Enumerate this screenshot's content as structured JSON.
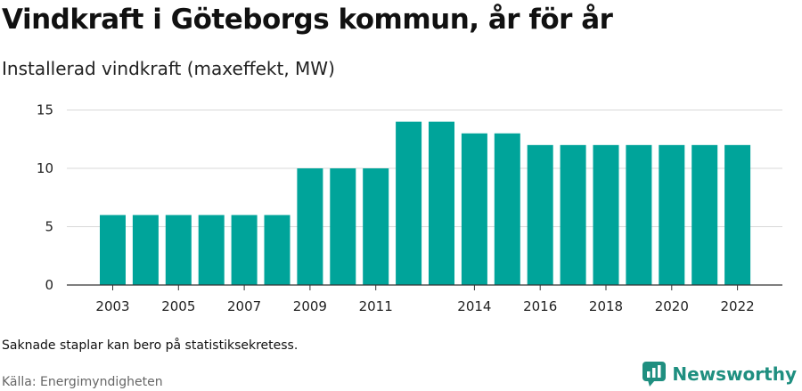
{
  "title": "Vindkraft i Göteborgs kommun, år för år",
  "subtitle": "Installerad vindkraft (maxeffekt, MW)",
  "note": "Saknade staplar kan bero på statistiksekretess.",
  "source": "Källa: Energimyndigheten",
  "brand": {
    "name": "Newsworthy",
    "icon": "newsworthy-logo-icon",
    "color": "#1f8f80"
  },
  "chart_data": {
    "type": "bar",
    "categories": [
      "2003",
      "2004",
      "2005",
      "2006",
      "2007",
      "2008",
      "2009",
      "2010",
      "2011",
      "2012",
      "2013",
      "2014",
      "2015",
      "2016",
      "2017",
      "2018",
      "2019",
      "2020",
      "2021",
      "2022"
    ],
    "values": [
      6,
      6,
      6,
      6,
      6,
      6,
      10,
      10,
      10,
      14,
      14,
      13,
      13,
      12,
      12,
      12,
      12,
      12,
      12,
      12
    ],
    "x_tick_labels": [
      "2003",
      "2005",
      "2007",
      "2009",
      "2011",
      "2014",
      "2016",
      "2018",
      "2020",
      "2022"
    ],
    "y_ticks": [
      0,
      5,
      10,
      15
    ],
    "ylim": [
      0,
      15.5
    ],
    "grid": true,
    "bar_color": "#00a49a",
    "xlabel": "",
    "ylabel": ""
  }
}
